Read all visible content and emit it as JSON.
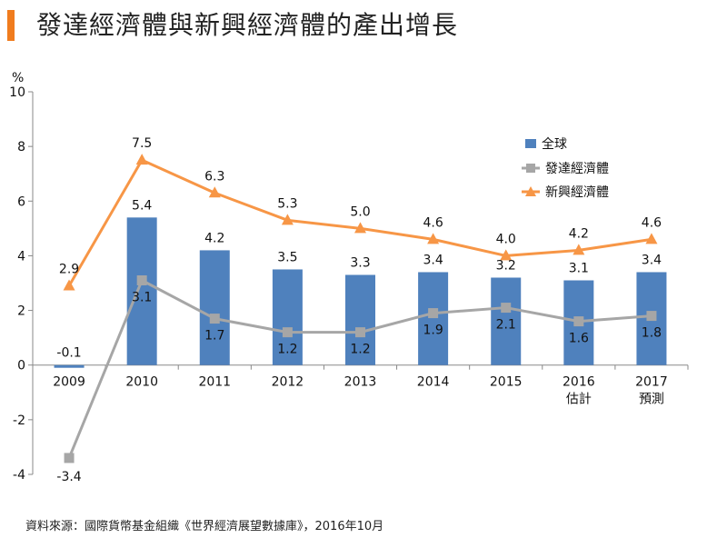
{
  "title": "發達經濟體與新興經濟體的產出增長",
  "source": "資料來源：國際貨幣基金組織《世界經濟展望數據庫》，2016年10月",
  "colors": {
    "accent": "#f07c1e",
    "bar": "#4f81bd",
    "gray": "#a6a6a6",
    "orange": "#f79646"
  },
  "chart_data": {
    "type": "bar",
    "title": "發達經濟體與新興經濟體的產出增長",
    "ylabel": "%",
    "ylim": [
      -4,
      10
    ],
    "yticks": [
      -4,
      -2,
      0,
      2,
      4,
      6,
      8,
      10
    ],
    "categories": [
      "2009",
      "2010",
      "2011",
      "2012",
      "2013",
      "2014",
      "2015",
      "2016",
      "2017"
    ],
    "category_sublabels": [
      "",
      "",
      "",
      "",
      "",
      "",
      "",
      "估計",
      "預測"
    ],
    "series": [
      {
        "name": "全球",
        "type": "bar",
        "values": [
          -0.1,
          5.4,
          4.2,
          3.5,
          3.3,
          3.4,
          3.2,
          3.1,
          3.4
        ]
      },
      {
        "name": "發達經濟體",
        "type": "line",
        "marker": "square",
        "values": [
          -3.4,
          3.1,
          1.7,
          1.2,
          1.2,
          1.9,
          2.1,
          1.6,
          1.8
        ]
      },
      {
        "name": "新興經濟體",
        "type": "line",
        "marker": "triangle",
        "values": [
          2.9,
          7.5,
          6.3,
          5.3,
          5.0,
          4.6,
          4.0,
          4.2,
          4.6
        ]
      }
    ],
    "legend": "top-right"
  }
}
